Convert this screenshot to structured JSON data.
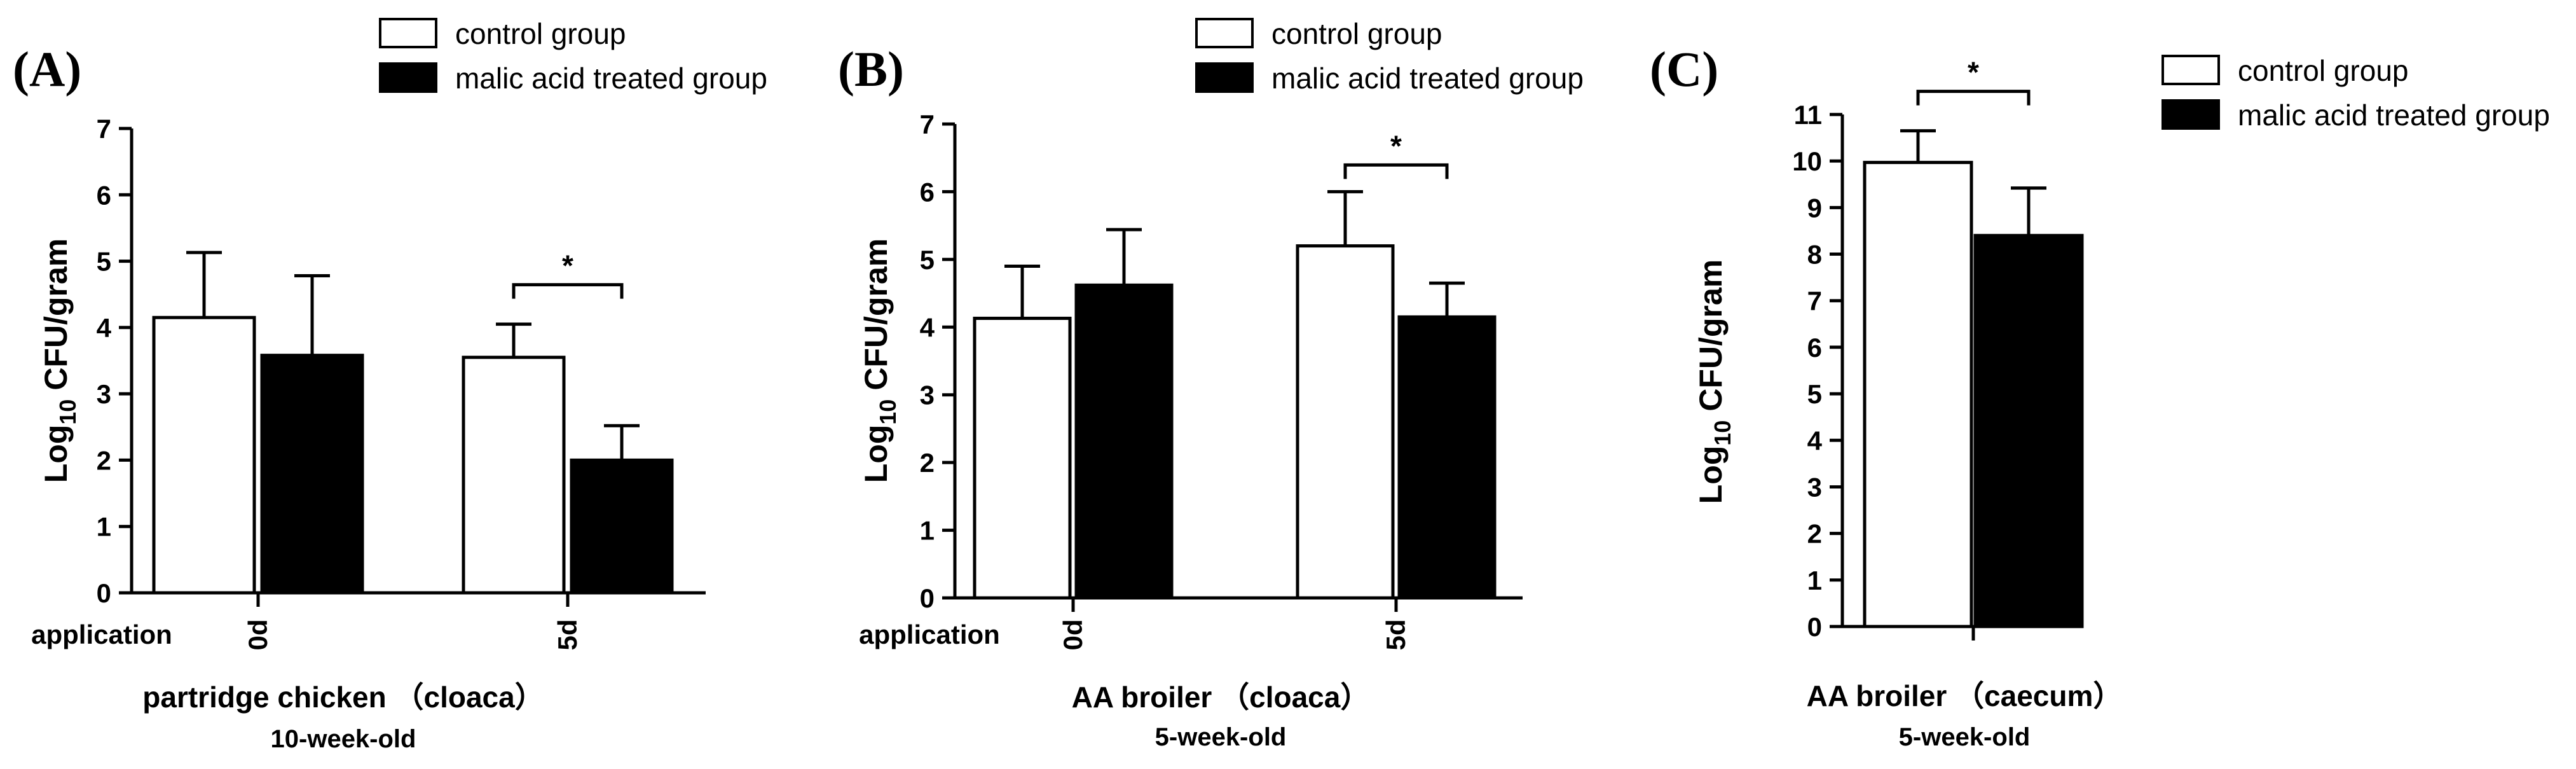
{
  "chart_data": [
    {
      "type": "bar",
      "panel_label": "(A)",
      "legend": [
        "control group",
        "malic acid treated group"
      ],
      "ylabel": {
        "base": "Log",
        "subscript": "10",
        "rest": " CFU/gram"
      },
      "ylim": [
        0,
        7
      ],
      "yticks": [
        "0",
        "1",
        "2",
        "3",
        "4",
        "5",
        "6",
        "7"
      ],
      "row_label": "application",
      "categories": [
        "0d",
        "5d"
      ],
      "series": [
        {
          "name": "control group",
          "fill": "#ffffff",
          "values": [
            4.15,
            3.55
          ],
          "errors": [
            0.98,
            0.5
          ]
        },
        {
          "name": "malic acid treated group",
          "fill": "#000000",
          "values": [
            3.58,
            2.0
          ],
          "errors": [
            1.2,
            0.52
          ]
        }
      ],
      "significance": [
        {
          "category": "5d",
          "label": "*"
        }
      ],
      "xlabel": "partridge chicken （cloaca）",
      "subtitle": "10-week-old"
    },
    {
      "type": "bar",
      "panel_label": "(B)",
      "legend": [
        "control group",
        "malic acid treated group"
      ],
      "ylabel": {
        "base": "Log",
        "subscript": "10",
        "rest": " CFU/gram"
      },
      "ylim": [
        0,
        7
      ],
      "yticks": [
        "0",
        "1",
        "2",
        "3",
        "4",
        "5",
        "6",
        "7"
      ],
      "row_label": "application",
      "categories": [
        "0d",
        "5d"
      ],
      "series": [
        {
          "name": "control group",
          "fill": "#ffffff",
          "values": [
            4.13,
            5.2
          ],
          "errors": [
            0.77,
            0.8
          ]
        },
        {
          "name": "malic acid treated group",
          "fill": "#000000",
          "values": [
            4.62,
            4.15
          ],
          "errors": [
            0.82,
            0.5
          ]
        }
      ],
      "significance": [
        {
          "category": "5d",
          "label": "*"
        }
      ],
      "xlabel": "AA broiler （cloaca）",
      "subtitle": "5-week-old"
    },
    {
      "type": "bar",
      "panel_label": "(C)",
      "legend": [
        "control group",
        "malic acid treated group"
      ],
      "ylabel": {
        "base": "Log",
        "subscript": "10",
        "rest": " CFU/gram"
      },
      "ylim": [
        0,
        11
      ],
      "yticks": [
        "0",
        "1",
        "2",
        "3",
        "4",
        "5",
        "6",
        "7",
        "8",
        "9",
        "10",
        "11"
      ],
      "row_label": "",
      "categories": [
        ""
      ],
      "series": [
        {
          "name": "control group",
          "fill": "#ffffff",
          "values": [
            9.97
          ],
          "errors": [
            0.68
          ]
        },
        {
          "name": "malic acid treated group",
          "fill": "#000000",
          "values": [
            8.4
          ],
          "errors": [
            1.02
          ]
        }
      ],
      "significance": [
        {
          "category": "",
          "label": "*"
        }
      ],
      "xlabel": "AA broiler （caecum）",
      "subtitle": "5-week-old"
    }
  ]
}
